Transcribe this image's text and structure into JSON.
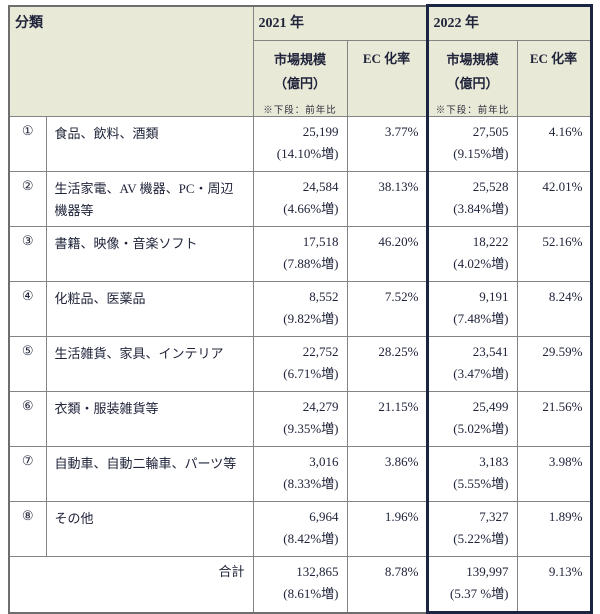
{
  "colors": {
    "header_background": "#e9e9d8",
    "grid_border": "#848484",
    "highlight_border_2022": "#1b2440",
    "text": "#20243a"
  },
  "table": {
    "classification_label": "分類",
    "year_2021": {
      "label": "2021 年",
      "market_header": "市場規模",
      "market_unit": "（億円）",
      "market_note": "※下段：前年比",
      "ec_header": "EC 化率"
    },
    "year_2022": {
      "label": "2022 年",
      "market_header": "市場規模",
      "market_unit": "（億円）",
      "market_note": "※下段：前年比",
      "ec_header": "EC 化率"
    },
    "rows": [
      {
        "no": "①",
        "category": "食品、飲料、酒類",
        "y2021": {
          "market": "25,199",
          "yoy": "(14.10%増)",
          "ec": "3.77%"
        },
        "y2022": {
          "market": "27,505",
          "yoy": "(9.15%増)",
          "ec": "4.16%"
        }
      },
      {
        "no": "②",
        "category": "生活家電、AV 機器、PC・周辺機器等",
        "y2021": {
          "market": "24,584",
          "yoy": "(4.66%増)",
          "ec": "38.13%"
        },
        "y2022": {
          "market": "25,528",
          "yoy": "(3.84%増)",
          "ec": "42.01%"
        }
      },
      {
        "no": "③",
        "category": "書籍、映像・音楽ソフト",
        "y2021": {
          "market": "17,518",
          "yoy": "(7.88%増)",
          "ec": "46.20%"
        },
        "y2022": {
          "market": "18,222",
          "yoy": "(4.02%増)",
          "ec": "52.16%"
        }
      },
      {
        "no": "④",
        "category": "化粧品、医薬品",
        "y2021": {
          "market": "8,552",
          "yoy": "(9.82%増)",
          "ec": "7.52%"
        },
        "y2022": {
          "market": "9,191",
          "yoy": "(7.48%増)",
          "ec": "8.24%"
        }
      },
      {
        "no": "⑤",
        "category": "生活雑貨、家具、インテリア",
        "y2021": {
          "market": "22,752",
          "yoy": "(6.71%増)",
          "ec": "28.25%"
        },
        "y2022": {
          "market": "23,541",
          "yoy": "(3.47%増)",
          "ec": "29.59%"
        }
      },
      {
        "no": "⑥",
        "category": "衣類・服装雑貨等",
        "y2021": {
          "market": "24,279",
          "yoy": "(9.35%増)",
          "ec": "21.15%"
        },
        "y2022": {
          "market": "25,499",
          "yoy": "(5.02%増)",
          "ec": "21.56%"
        }
      },
      {
        "no": "⑦",
        "category": "自動車、自動二輪車、パーツ等",
        "y2021": {
          "market": "3,016",
          "yoy": "(8.33%増)",
          "ec": "3.86%"
        },
        "y2022": {
          "market": "3,183",
          "yoy": "(5.55%増)",
          "ec": "3.98%"
        }
      },
      {
        "no": "⑧",
        "category": "その他",
        "y2021": {
          "market": "6,964",
          "yoy": "(8.42%増)",
          "ec": "1.96%"
        },
        "y2022": {
          "market": "7,327",
          "yoy": "(5.22%増)",
          "ec": "1.89%"
        }
      }
    ],
    "total": {
      "label": "合計",
      "y2021": {
        "market": "132,865",
        "yoy": "(8.61%増)",
        "ec": "8.78%"
      },
      "y2022": {
        "market": "139,997",
        "yoy": "(5.37 %増)",
        "ec": "9.13%"
      }
    }
  }
}
